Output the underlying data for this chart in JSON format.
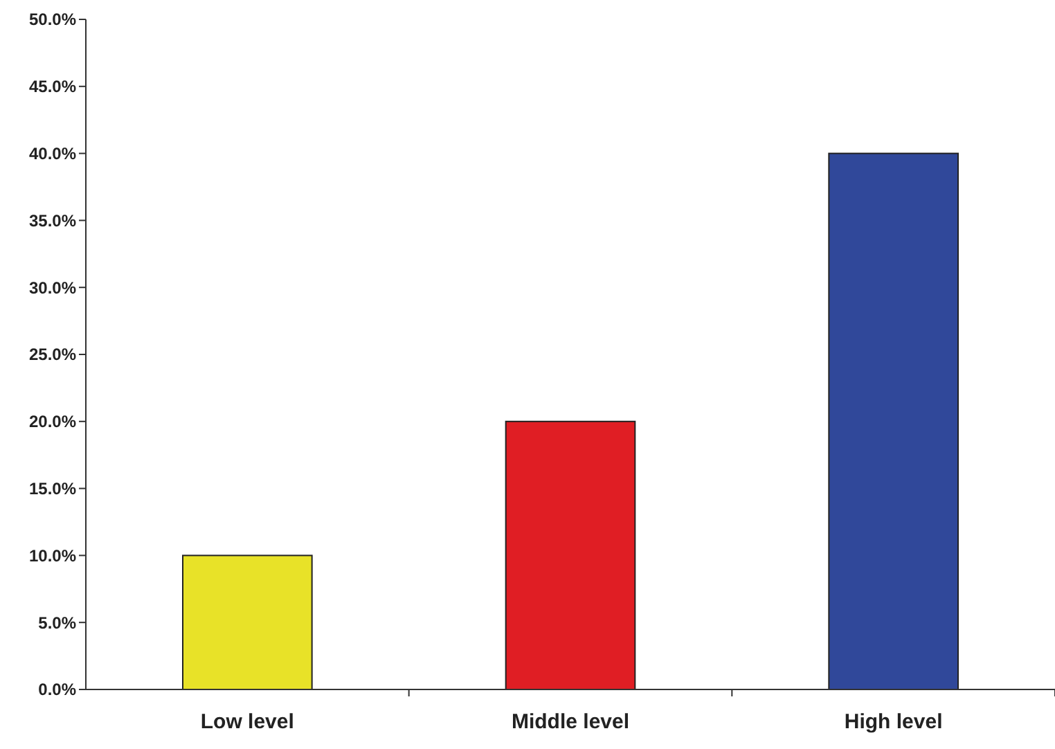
{
  "chart_data": {
    "type": "bar",
    "categories": [
      "Low level",
      "Middle level",
      "High level"
    ],
    "values": [
      10,
      20,
      40
    ],
    "colors": [
      "#e8e228",
      "#e01e24",
      "#30489a"
    ],
    "ylim": [
      0,
      50
    ],
    "yticks": [
      {
        "value": 0,
        "label": "0.0%"
      },
      {
        "value": 5,
        "label": "5.0%"
      },
      {
        "value": 10,
        "label": "10.0%"
      },
      {
        "value": 15,
        "label": "15.0%"
      },
      {
        "value": 20,
        "label": "20.0%"
      },
      {
        "value": 25,
        "label": "25.0%"
      },
      {
        "value": 30,
        "label": "30.0%"
      },
      {
        "value": 35,
        "label": "35.0%"
      },
      {
        "value": 40,
        "label": "40.0%"
      },
      {
        "value": 45,
        "label": "45.0%"
      },
      {
        "value": 50,
        "label": "50.0%"
      }
    ],
    "grid": false
  }
}
